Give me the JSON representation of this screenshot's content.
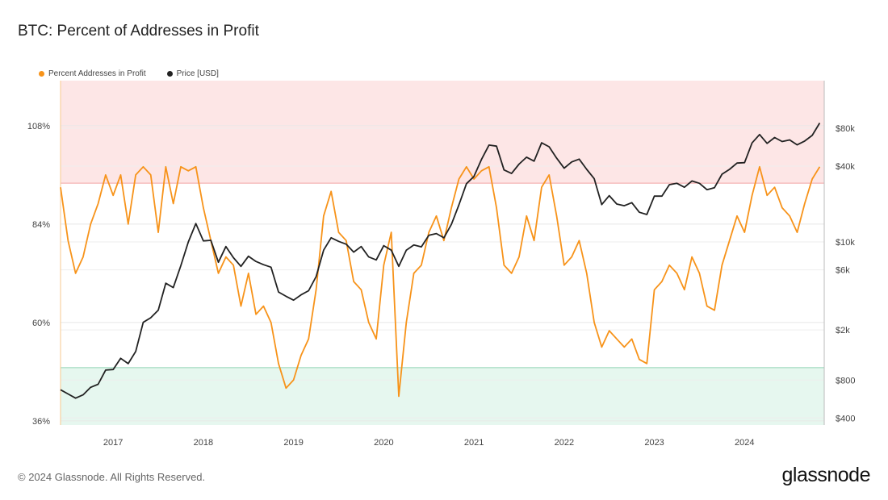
{
  "chart_data": {
    "type": "line",
    "title": "BTC: Percent of Addresses in Profit",
    "legend_position": "top-left",
    "grid": true,
    "x_range": [
      "2016-06",
      "2024-11"
    ],
    "x_ticks": [
      "2017",
      "2018",
      "2019",
      "2020",
      "2021",
      "2022",
      "2023",
      "2024"
    ],
    "y_left": {
      "ticks": [
        "108%",
        "84%",
        "60%",
        "36%"
      ],
      "tick_values": [
        108,
        84,
        60,
        36
      ],
      "range": [
        35,
        119
      ]
    },
    "y_right": {
      "scale": "log",
      "ticks": [
        "$80k",
        "$40k",
        "$10k",
        "$6k",
        "$2k",
        "$800",
        "$400"
      ],
      "tick_values": [
        80000,
        40000,
        10000,
        6000,
        2000,
        800,
        400
      ]
    },
    "bands": [
      {
        "name": "upper",
        "from": 94,
        "to": 119,
        "color": "#fde6e6",
        "line": "#f2a3a3"
      },
      {
        "name": "lower",
        "from": 35,
        "to": 49,
        "color": "#e6f7ef",
        "line": "#8fd3b3"
      }
    ],
    "dates": [
      "2016-06",
      "2016-07",
      "2016-08",
      "2016-09",
      "2016-10",
      "2016-11",
      "2016-12",
      "2017-01",
      "2017-02",
      "2017-03",
      "2017-04",
      "2017-05",
      "2017-06",
      "2017-07",
      "2017-08",
      "2017-09",
      "2017-10",
      "2017-11",
      "2017-12",
      "2018-01",
      "2018-02",
      "2018-03",
      "2018-04",
      "2018-05",
      "2018-06",
      "2018-07",
      "2018-08",
      "2018-09",
      "2018-10",
      "2018-11",
      "2018-12",
      "2019-01",
      "2019-02",
      "2019-03",
      "2019-04",
      "2019-05",
      "2019-06",
      "2019-07",
      "2019-08",
      "2019-09",
      "2019-10",
      "2019-11",
      "2019-12",
      "2020-01",
      "2020-02",
      "2020-03",
      "2020-04",
      "2020-05",
      "2020-06",
      "2020-07",
      "2020-08",
      "2020-09",
      "2020-10",
      "2020-11",
      "2020-12",
      "2021-01",
      "2021-02",
      "2021-03",
      "2021-04",
      "2021-05",
      "2021-06",
      "2021-07",
      "2021-08",
      "2021-09",
      "2021-10",
      "2021-11",
      "2021-12",
      "2022-01",
      "2022-02",
      "2022-03",
      "2022-04",
      "2022-05",
      "2022-06",
      "2022-07",
      "2022-08",
      "2022-09",
      "2022-10",
      "2022-11",
      "2022-12",
      "2023-01",
      "2023-02",
      "2023-03",
      "2023-04",
      "2023-05",
      "2023-06",
      "2023-07",
      "2023-08",
      "2023-09",
      "2023-10",
      "2023-11",
      "2023-12",
      "2024-01",
      "2024-02",
      "2024-03",
      "2024-04",
      "2024-05",
      "2024-06",
      "2024-07",
      "2024-08",
      "2024-09",
      "2024-10",
      "2024-11"
    ],
    "series": [
      {
        "name": "Percent Addresses in Profit",
        "axis": "left",
        "color": "#f7931a",
        "values": [
          93,
          80,
          72,
          76,
          84,
          89,
          96,
          91,
          96,
          84,
          96,
          98,
          96,
          82,
          98,
          89,
          98,
          97,
          98,
          88,
          80,
          72,
          76,
          74,
          64,
          72,
          62,
          64,
          60,
          50,
          44,
          46,
          52,
          56,
          68,
          86,
          92,
          82,
          80,
          70,
          68,
          60,
          56,
          74,
          82,
          42,
          60,
          72,
          74,
          82,
          86,
          80,
          88,
          95,
          98,
          95,
          97,
          98,
          88,
          74,
          72,
          76,
          86,
          80,
          93,
          96,
          86,
          74,
          76,
          80,
          72,
          60,
          54,
          58,
          56,
          54,
          56,
          51,
          50,
          68,
          70,
          74,
          72,
          68,
          76,
          72,
          64,
          63,
          74,
          80,
          86,
          82,
          91,
          98,
          91,
          93,
          88,
          86,
          82,
          89,
          95,
          98
        ]
      },
      {
        "name": "Price [USD]",
        "axis": "right",
        "color": "#222222",
        "values": [
          670,
          620,
          575,
          610,
          700,
          740,
          960,
          970,
          1190,
          1080,
          1350,
          2300,
          2500,
          2870,
          4700,
          4340,
          6470,
          10000,
          14000,
          10200,
          10300,
          6900,
          9200,
          7500,
          6400,
          7700,
          7000,
          6600,
          6300,
          4000,
          3700,
          3450,
          3800,
          4100,
          5300,
          8600,
          10800,
          10100,
          9600,
          8300,
          9200,
          7600,
          7200,
          9350,
          8600,
          6400,
          8600,
          9450,
          9140,
          11300,
          11650,
          10780,
          13800,
          19700,
          29000,
          33100,
          45200,
          58800,
          57700,
          37300,
          35000,
          41500,
          47100,
          43800,
          61300,
          57000,
          46300,
          38500,
          43200,
          45500,
          37700,
          31800,
          19800,
          23300,
          20000,
          19400,
          20500,
          17200,
          16500,
          23100,
          23100,
          28500,
          29200,
          27200,
          30500,
          29200,
          26000,
          27000,
          34500,
          37700,
          42300,
          42600,
          61200,
          71300,
          60600,
          67500,
          62700,
          64600,
          59000,
          63300,
          70200,
          88000
        ]
      }
    ]
  },
  "footer": {
    "copyright": "© 2024 Glassnode. All Rights Reserved.",
    "logo": "glassnode"
  }
}
